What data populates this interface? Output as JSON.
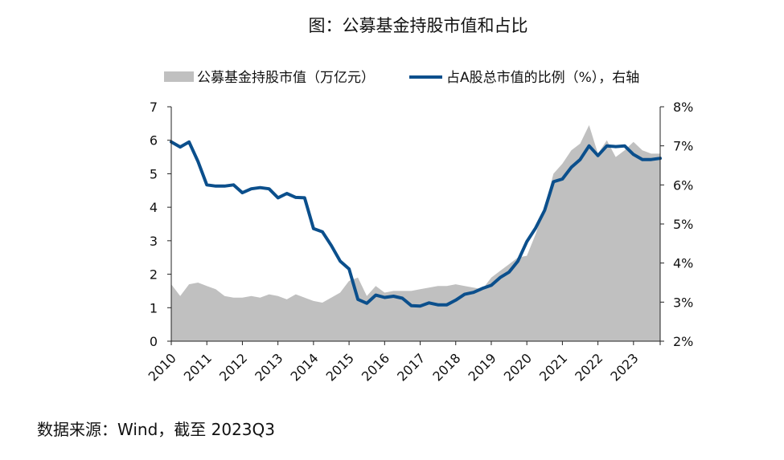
{
  "title": "图：公募基金持股市值和占比",
  "source": "数据来源：Wind，截至 2023Q3",
  "colors": {
    "area": "#c0c0c0",
    "line": "#0b4f8c",
    "axis": "#222222"
  },
  "chart_data": {
    "type": "area+line",
    "title": "图：公募基金持股市值和占比",
    "x_labels": [
      "2010",
      "2011",
      "2012",
      "2013",
      "2014",
      "2015",
      "2016",
      "2017",
      "2018",
      "2019",
      "2020",
      "2021",
      "2022",
      "2023"
    ],
    "x_range": [
      2010.0,
      2023.75
    ],
    "y_left": {
      "ylim": [
        0,
        7
      ],
      "ticks": [
        "0",
        "1",
        "2",
        "3",
        "4",
        "5",
        "6",
        "7"
      ]
    },
    "y_right": {
      "ylim": [
        2,
        8
      ],
      "ticks": [
        "2%",
        "3%",
        "4%",
        "5%",
        "6%",
        "7%",
        "8%"
      ]
    },
    "legend": {
      "position": "top"
    },
    "series": [
      {
        "name": "公募基金持股市值（万亿元）",
        "type": "area",
        "axis": "left",
        "x": [
          2010.0,
          2010.25,
          2010.5,
          2010.75,
          2011.0,
          2011.25,
          2011.5,
          2011.75,
          2012.0,
          2012.25,
          2012.5,
          2012.75,
          2013.0,
          2013.25,
          2013.5,
          2013.75,
          2014.0,
          2014.25,
          2014.5,
          2014.75,
          2015.0,
          2015.25,
          2015.5,
          2015.75,
          2016.0,
          2016.25,
          2016.5,
          2016.75,
          2017.0,
          2017.25,
          2017.5,
          2017.75,
          2018.0,
          2018.25,
          2018.5,
          2018.75,
          2019.0,
          2019.25,
          2019.5,
          2019.75,
          2020.0,
          2020.25,
          2020.5,
          2020.75,
          2021.0,
          2021.25,
          2021.5,
          2021.75,
          2022.0,
          2022.25,
          2022.5,
          2022.75,
          2023.0,
          2023.25,
          2023.5,
          2023.75
        ],
        "y": [
          1.7,
          1.35,
          1.7,
          1.75,
          1.65,
          1.55,
          1.35,
          1.3,
          1.3,
          1.35,
          1.3,
          1.4,
          1.35,
          1.25,
          1.4,
          1.3,
          1.2,
          1.15,
          1.3,
          1.45,
          1.8,
          1.9,
          1.35,
          1.65,
          1.45,
          1.5,
          1.5,
          1.5,
          1.55,
          1.6,
          1.65,
          1.65,
          1.7,
          1.65,
          1.6,
          1.55,
          1.9,
          2.1,
          2.3,
          2.5,
          2.55,
          3.2,
          4.0,
          5.0,
          5.3,
          5.7,
          5.9,
          6.45,
          5.6,
          6.0,
          5.5,
          5.7,
          5.95,
          5.7,
          5.6,
          5.6
        ]
      },
      {
        "name": "占A股总市值的比例（%），右轴",
        "type": "line",
        "axis": "right",
        "x": [
          2010.0,
          2010.25,
          2010.5,
          2010.75,
          2011.0,
          2011.25,
          2011.5,
          2011.75,
          2012.0,
          2012.25,
          2012.5,
          2012.75,
          2013.0,
          2013.25,
          2013.5,
          2013.75,
          2014.0,
          2014.25,
          2014.5,
          2014.75,
          2015.0,
          2015.25,
          2015.5,
          2015.75,
          2016.0,
          2016.25,
          2016.5,
          2016.75,
          2017.0,
          2017.25,
          2017.5,
          2017.75,
          2018.0,
          2018.25,
          2018.5,
          2018.75,
          2019.0,
          2019.25,
          2019.5,
          2019.75,
          2020.0,
          2020.25,
          2020.5,
          2020.75,
          2021.0,
          2021.25,
          2021.5,
          2021.75,
          2022.0,
          2022.25,
          2022.5,
          2022.75,
          2023.0,
          2023.25,
          2023.5,
          2023.75
        ],
        "y": [
          7.1,
          6.97,
          7.1,
          6.6,
          6.0,
          5.97,
          5.97,
          6.0,
          5.8,
          5.9,
          5.93,
          5.9,
          5.67,
          5.78,
          5.68,
          5.67,
          4.88,
          4.8,
          4.45,
          4.05,
          3.85,
          3.07,
          2.97,
          3.18,
          3.12,
          3.15,
          3.1,
          2.91,
          2.9,
          2.98,
          2.93,
          2.93,
          3.05,
          3.2,
          3.25,
          3.35,
          3.43,
          3.63,
          3.77,
          4.05,
          4.55,
          4.9,
          5.35,
          6.08,
          6.15,
          6.45,
          6.65,
          7.0,
          6.75,
          7.0,
          6.98,
          7.0,
          6.78,
          6.65,
          6.65,
          6.68
        ]
      }
    ]
  }
}
